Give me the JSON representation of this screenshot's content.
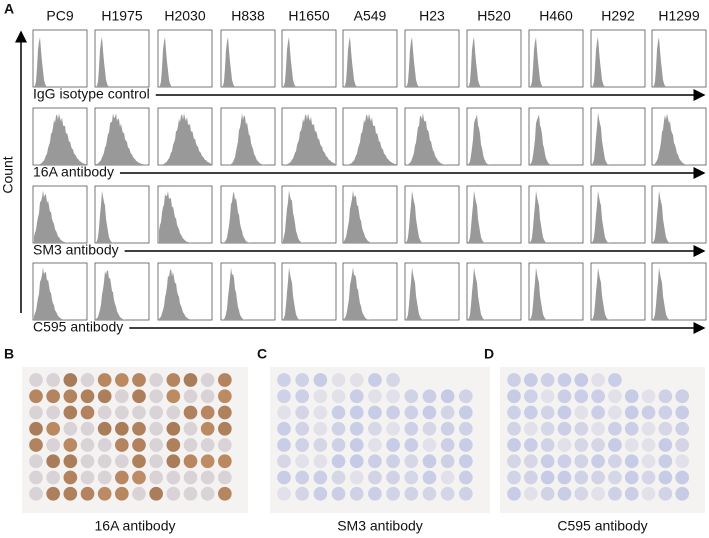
{
  "panel_a": {
    "label": "A",
    "cell_lines": [
      "PC9",
      "H1975",
      "H2030",
      "H838",
      "H1650",
      "A549",
      "H23",
      "H520",
      "H460",
      "H292",
      "H1299"
    ],
    "rows": [
      "IgG isotype control",
      "16A antibody",
      "SM3 antibody",
      "C595 antibody"
    ],
    "y_axis": "Count"
  },
  "panels": [
    {
      "label": "B",
      "caption": "16A antibody"
    },
    {
      "label": "C",
      "caption": "SM3 antibody"
    },
    {
      "label": "D",
      "caption": "C595 antibody"
    }
  ]
}
